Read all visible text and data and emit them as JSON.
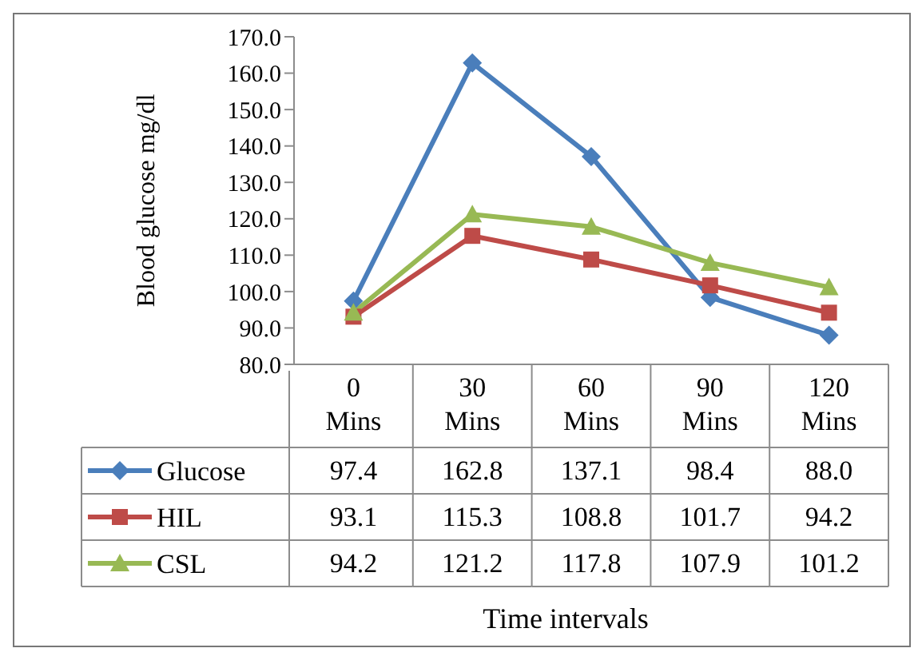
{
  "chart_data": {
    "type": "line",
    "ylabel": "Blood glucose mg/dl",
    "annotations": [
      "Time intervals"
    ],
    "categories": [
      "0 Mins",
      "30 Mins",
      "60 Mins",
      "90 Mins",
      "120 Mins"
    ],
    "ylim": [
      80,
      170
    ],
    "yticks": [
      {
        "value": 80,
        "label": "80.0"
      },
      {
        "value": 90,
        "label": "90.0"
      },
      {
        "value": 100,
        "label": "100.0"
      },
      {
        "value": 110,
        "label": "110.0"
      },
      {
        "value": 120,
        "label": "120.0"
      },
      {
        "value": 130,
        "label": "130.0"
      },
      {
        "value": 140,
        "label": "140.0"
      },
      {
        "value": 150,
        "label": "150.0"
      },
      {
        "value": 160,
        "label": "160.0"
      },
      {
        "value": 170,
        "label": "170.0"
      }
    ],
    "legend": "bottom",
    "series": [
      {
        "name": "Glucose",
        "color": "#4a7ebb",
        "marker": "diamond",
        "values": [
          97.4,
          162.8,
          137.1,
          98.4,
          88.0
        ],
        "value_labels": [
          "97.4",
          "162.8",
          "137.1",
          "98.4",
          "88.0"
        ]
      },
      {
        "name": "HIL",
        "color": "#be4b48",
        "marker": "square",
        "values": [
          93.1,
          115.3,
          108.8,
          101.7,
          94.2
        ],
        "value_labels": [
          "93.1",
          "115.3",
          "108.8",
          "101.7",
          "94.2"
        ]
      },
      {
        "name": "CSL",
        "color": "#98b954",
        "marker": "triangle",
        "values": [
          94.2,
          121.2,
          117.8,
          107.9,
          101.2
        ],
        "value_labels": [
          "94.2",
          "121.2",
          "117.8",
          "107.9",
          "101.2"
        ]
      }
    ]
  }
}
